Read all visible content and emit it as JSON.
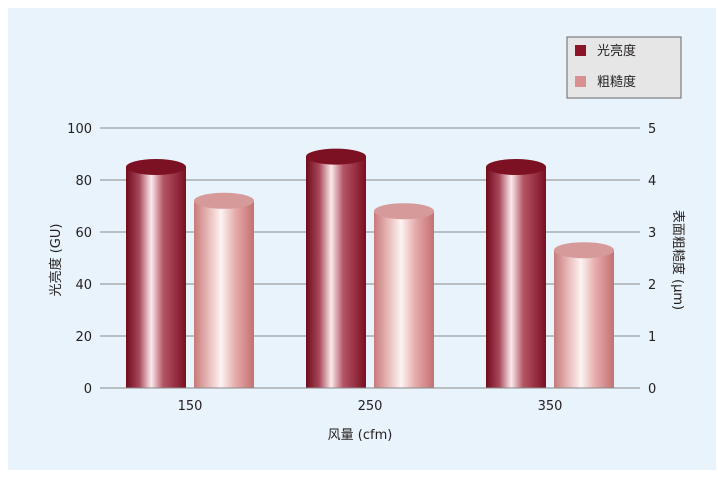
{
  "chart_data": {
    "type": "bar",
    "categories": [
      "150",
      "250",
      "350"
    ],
    "series": [
      {
        "name": "光亮度",
        "axis": "left",
        "values": [
          85,
          89,
          85
        ],
        "color": "#8b1427"
      },
      {
        "name": "粗糙度",
        "axis": "right",
        "values": [
          3.6,
          3.4,
          2.65
        ],
        "color": "#d99090"
      }
    ],
    "xlabel": "风量 (cfm)",
    "ylabel": "光亮度 (GU)",
    "y2label": "表面粗糙度 (μm)",
    "ylim": [
      0,
      100
    ],
    "y2lim": [
      0,
      5
    ],
    "yticks": [
      "0",
      "20",
      "40",
      "60",
      "80",
      "100"
    ],
    "y2ticks": [
      "0",
      "1",
      "2",
      "3",
      "4",
      "5"
    ],
    "grid": true,
    "legend_position": "top-right"
  }
}
